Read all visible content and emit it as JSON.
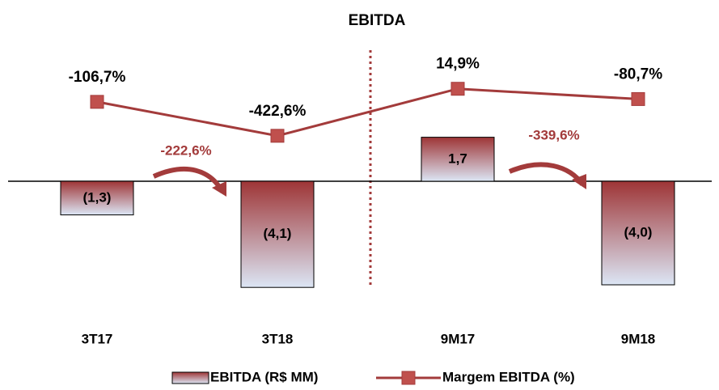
{
  "chart_data": {
    "type": "bar",
    "title": "EBITDA",
    "categories": [
      "3T17",
      "3T18",
      "9M17",
      "9M18"
    ],
    "ylim": [
      -5,
      6
    ],
    "y2lim": [
      -2050,
      600
    ],
    "series": [
      {
        "name": "EBITDA (R$ MM)",
        "type": "bar",
        "color": "#9e3536",
        "values": [
          -1.3,
          -4.1,
          1.7,
          -4.0
        ],
        "value_labels": [
          "(1,3)",
          "(4,1)",
          "1,7",
          "(4,0)"
        ]
      },
      {
        "name": "Margem EBITDA (%)",
        "type": "line",
        "axis": "y2",
        "color": "#a33b3b",
        "values": [
          -106.7,
          -422.6,
          14.9,
          -80.7
        ],
        "value_labels": [
          "-106,7%",
          "-422,6%",
          "14,9%",
          "-80,7%"
        ]
      }
    ],
    "annotations": [
      "-222,6%",
      "-339,6%"
    ]
  }
}
